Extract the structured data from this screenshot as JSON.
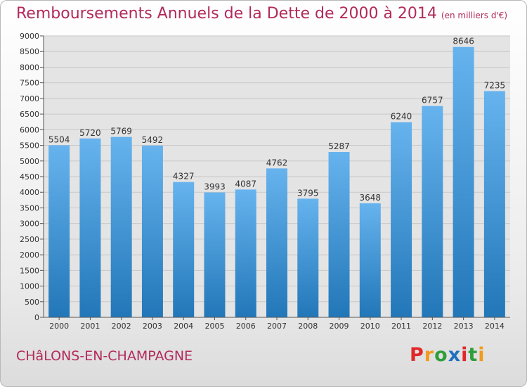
{
  "header": {
    "title": "Remboursements Annuels de la Dette de 2000 à 2014",
    "unit": "(en milliers d'€)"
  },
  "footer": {
    "city": "CHâLONS-EN-CHAMPAGNE",
    "brand": "Proxiti",
    "brand_colors": [
      "#e0282a",
      "#f29a1c",
      "#2f9e3a",
      "#1f6fbf",
      "#e0282a",
      "#2f9e3a",
      "#f29a1c"
    ]
  },
  "colors": {
    "bar_light": "#66b3ee",
    "bar_dark": "#2277b8",
    "title": "#b22a5a",
    "grid": "#c8c8c8",
    "plot_bg": "#e4e4e4"
  },
  "chart_data": {
    "type": "bar",
    "title": "Remboursements Annuels de la Dette de 2000 à 2014",
    "subtitle": "(en milliers d'€)",
    "xlabel": "",
    "ylabel": "",
    "categories": [
      "2000",
      "2001",
      "2002",
      "2003",
      "2004",
      "2005",
      "2006",
      "2007",
      "2008",
      "2009",
      "2010",
      "2011",
      "2012",
      "2013",
      "2014"
    ],
    "values": [
      5504,
      5720,
      5769,
      5492,
      4327,
      3993,
      4087,
      4762,
      3795,
      5287,
      3648,
      6240,
      6757,
      8646,
      7235
    ],
    "ylim": [
      0,
      9000
    ],
    "yticks": [
      0,
      500,
      1000,
      1500,
      2000,
      2500,
      3000,
      3500,
      4000,
      4500,
      5000,
      5500,
      6000,
      6500,
      7000,
      7500,
      8000,
      8500,
      9000
    ],
    "grid": true,
    "data_labels": true,
    "legend": "none"
  }
}
